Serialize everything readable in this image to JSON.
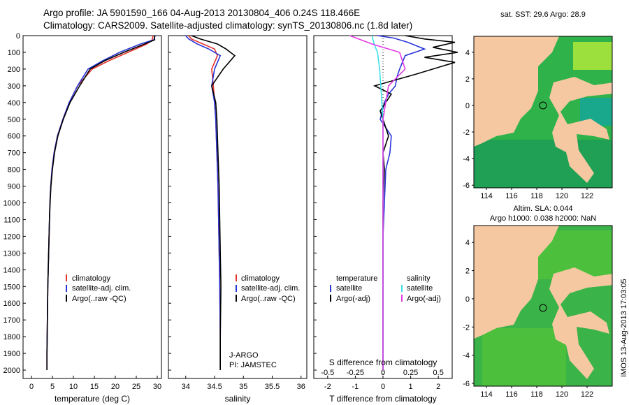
{
  "header": {
    "line1": "Argo profile: JA 5901590_166 04-Aug-2013 20130804_406 0.24S 118.466E",
    "line2": "Climatology: CARS2009. Satellite-adjusted climatology: synTS_20130806.nc (1.8d later)"
  },
  "side_label": "IMOS 13-Aug-2013 17:03:05",
  "colors": {
    "climatology": "#e8322b",
    "satellite": "#2a36d8",
    "argo": "#000000",
    "sat_salinity": "#3de0e8",
    "argo_salinity": "#e33be6",
    "land": "#f6c8a2"
  },
  "chart_data": [
    {
      "type": "line",
      "xlabel": "temperature (deg C)",
      "ylabel": "",
      "xlim": [
        -2,
        31
      ],
      "ylim": [
        2050,
        0
      ],
      "xticks": [
        "0",
        "5",
        "10",
        "15",
        "20",
        "25",
        "30"
      ],
      "yticks": [
        "0",
        "100",
        "200",
        "300",
        "400",
        "500",
        "600",
        "700",
        "800",
        "900",
        "1000",
        "1100",
        "1200",
        "1300",
        "1400",
        "1500",
        "1600",
        "1700",
        "1800",
        "1900",
        "2000"
      ],
      "legend": [
        "climatology",
        "satellite-adj. clim.",
        "Argo(..raw -QC)"
      ],
      "series": [
        {
          "name": "climatology",
          "x": [
            29.0,
            28.8,
            27.5,
            23,
            18.5,
            14.5,
            11,
            9,
            7.5,
            6.2,
            5.4,
            4.9,
            4.6,
            4.4,
            4.3,
            4.2,
            4.1,
            4.0,
            3.9,
            3.85,
            3.8,
            3.75,
            3.7,
            3.7
          ],
          "y": [
            0,
            25,
            50,
            100,
            150,
            200,
            300,
            400,
            500,
            600,
            700,
            800,
            900,
            1000,
            1100,
            1200,
            1300,
            1400,
            1500,
            1600,
            1700,
            1800,
            1900,
            2000
          ]
        },
        {
          "name": "satellite-adj. clim.",
          "x": [
            29.5,
            29.2,
            26,
            21,
            17,
            13.5,
            11,
            9,
            7.5,
            6.2,
            5.4,
            4.9,
            4.6,
            4.4,
            4.3,
            4.2,
            4.1,
            4.0,
            3.9,
            3.85,
            3.8,
            3.75,
            3.7,
            3.7
          ],
          "y": [
            0,
            25,
            50,
            100,
            150,
            200,
            300,
            400,
            500,
            600,
            700,
            800,
            900,
            1000,
            1100,
            1200,
            1300,
            1400,
            1500,
            1600,
            1700,
            1800,
            1900,
            2000
          ]
        },
        {
          "name": "Argo(..raw -QC)",
          "x": [
            29.3,
            29.4,
            27,
            22,
            17.5,
            14,
            11.5,
            9.2,
            7.6,
            6.3,
            5.5,
            5.0,
            4.65,
            4.45,
            4.3,
            4.2,
            4.1,
            4.0,
            3.9,
            3.85,
            3.8,
            3.75,
            3.7,
            3.7
          ],
          "y": [
            0,
            25,
            50,
            100,
            150,
            200,
            300,
            400,
            500,
            600,
            700,
            800,
            900,
            1000,
            1100,
            1200,
            1300,
            1400,
            1500,
            1600,
            1700,
            1800,
            1900,
            2000
          ]
        }
      ]
    },
    {
      "type": "line",
      "xlabel": "salinity",
      "ylabel": "",
      "xlim": [
        33.7,
        36.1
      ],
      "ylim": [
        2050,
        0
      ],
      "xticks": [
        "34",
        "34.5",
        "35",
        "35.5",
        "36"
      ],
      "legend": [
        "climatology",
        "satellite-adj. clim.",
        "Argo(..raw -QC)"
      ],
      "annotation": [
        "J-ARGO",
        "PI: JAMSTEC"
      ],
      "series": [
        {
          "name": "climatology",
          "x": [
            34.05,
            34.1,
            34.3,
            34.5,
            34.55,
            34.45,
            34.48,
            34.5,
            34.52,
            34.54,
            34.56,
            34.57,
            34.58,
            34.59,
            34.6,
            34.6
          ],
          "y": [
            0,
            20,
            50,
            80,
            120,
            200,
            300,
            400,
            500,
            700,
            900,
            1100,
            1300,
            1500,
            1800,
            2000
          ]
        },
        {
          "name": "satellite-adj. clim.",
          "x": [
            34.0,
            34.05,
            34.2,
            34.4,
            34.6,
            34.5,
            34.45,
            34.5,
            34.52,
            34.54,
            34.56,
            34.57,
            34.58,
            34.59,
            34.6,
            34.6
          ],
          "y": [
            0,
            20,
            50,
            80,
            120,
            200,
            300,
            400,
            500,
            700,
            900,
            1100,
            1300,
            1500,
            1800,
            2000
          ]
        },
        {
          "name": "Argo(..raw -QC)",
          "x": [
            34.1,
            34.25,
            34.55,
            34.7,
            34.85,
            34.65,
            34.45,
            34.52,
            34.54,
            34.56,
            34.58,
            34.59,
            34.6,
            34.61,
            34.6,
            34.6
          ],
          "y": [
            0,
            20,
            50,
            80,
            120,
            200,
            300,
            400,
            500,
            700,
            900,
            1100,
            1300,
            1500,
            1800,
            2000
          ]
        }
      ]
    },
    {
      "type": "line",
      "xlabel": "T difference from climatology",
      "xlabel2": "S difference from climatology",
      "xlim": [
        -2.5,
        2.5
      ],
      "ylim": [
        2050,
        0
      ],
      "xticks": [
        "-2",
        "-1",
        "0",
        "1",
        "2"
      ],
      "xticks2": [
        "-0.5",
        "-0.25",
        "0",
        "0.25",
        "0.5"
      ],
      "legend_headers": [
        "temperature",
        "salinity"
      ],
      "legend": [
        "satellite",
        "Argo(-adj)",
        "satellite",
        "Argo(-adj)"
      ],
      "series": [
        {
          "name": "satellite",
          "quantity": "temperature",
          "x": [
            -0.2,
            0.4,
            0.9,
            1.5,
            0.8,
            0.6,
            0.5,
            0.45,
            0.2,
            0.05,
            -0.1,
            0.3,
            0.25,
            0.1,
            0.05,
            0.0,
            0.0,
            0.0,
            0.0,
            0.0
          ],
          "y": [
            0,
            15,
            40,
            80,
            120,
            200,
            250,
            300,
            350,
            400,
            500,
            600,
            700,
            800,
            1000,
            1200,
            1400,
            1600,
            1800,
            2000
          ]
        },
        {
          "name": "Argo(-adj)",
          "quantity": "temperature",
          "x": [
            0.8,
            1.5,
            2.6,
            1.8,
            2.7,
            1.5,
            2.6,
            1.2,
            -0.3,
            0.3,
            -0.1,
            0.2,
            0.0,
            0.05,
            0.0,
            0.0,
            0.0,
            0.0,
            0.0,
            0.0
          ],
          "y": [
            0,
            20,
            40,
            70,
            100,
            130,
            160,
            230,
            300,
            350,
            450,
            600,
            700,
            800,
            1000,
            1200,
            1400,
            1600,
            1800,
            2000
          ]
        },
        {
          "name": "satellite",
          "quantity": "salinity",
          "x": [
            -0.1,
            -0.08,
            -0.05,
            -0.03,
            -0.02,
            0.0,
            0.0,
            0.0,
            0.0,
            0.0,
            0.0
          ],
          "y": [
            0,
            50,
            100,
            200,
            300,
            500,
            700,
            1000,
            1400,
            1800,
            2000
          ]
        },
        {
          "name": "Argo(-adj)",
          "quantity": "salinity",
          "x": [
            -0.3,
            -0.1,
            0.15,
            0.2,
            0.05,
            0.0,
            0.0,
            0.0,
            0.0,
            0.0,
            0.0
          ],
          "y": [
            0,
            50,
            100,
            200,
            300,
            500,
            700,
            1000,
            1400,
            1800,
            2000
          ]
        }
      ]
    },
    {
      "type": "heatmap",
      "title": "sat. SST: 29.6  Argo: 28.9",
      "xticks": [
        "114",
        "116",
        "118",
        "120",
        "122"
      ],
      "yticks": [
        "4",
        "2",
        "0",
        "-2",
        "-4",
        "-6"
      ],
      "xlim": [
        113,
        124
      ],
      "ylim": [
        -6.2,
        5.2
      ],
      "marker": {
        "lon": 118.466,
        "lat": -0.24
      }
    },
    {
      "type": "heatmap",
      "title": "Altim. SLA: 0.044",
      "subtitle": "Argo h1000: 0.038 h2000: NaN",
      "xticks": [
        "114",
        "116",
        "118",
        "120",
        "122"
      ],
      "yticks": [
        "4",
        "2",
        "0",
        "-2",
        "-4",
        "-6"
      ],
      "xlim": [
        113,
        124
      ],
      "ylim": [
        -6.2,
        5.2
      ],
      "marker": {
        "lon": 118.466,
        "lat": -0.24
      }
    }
  ]
}
